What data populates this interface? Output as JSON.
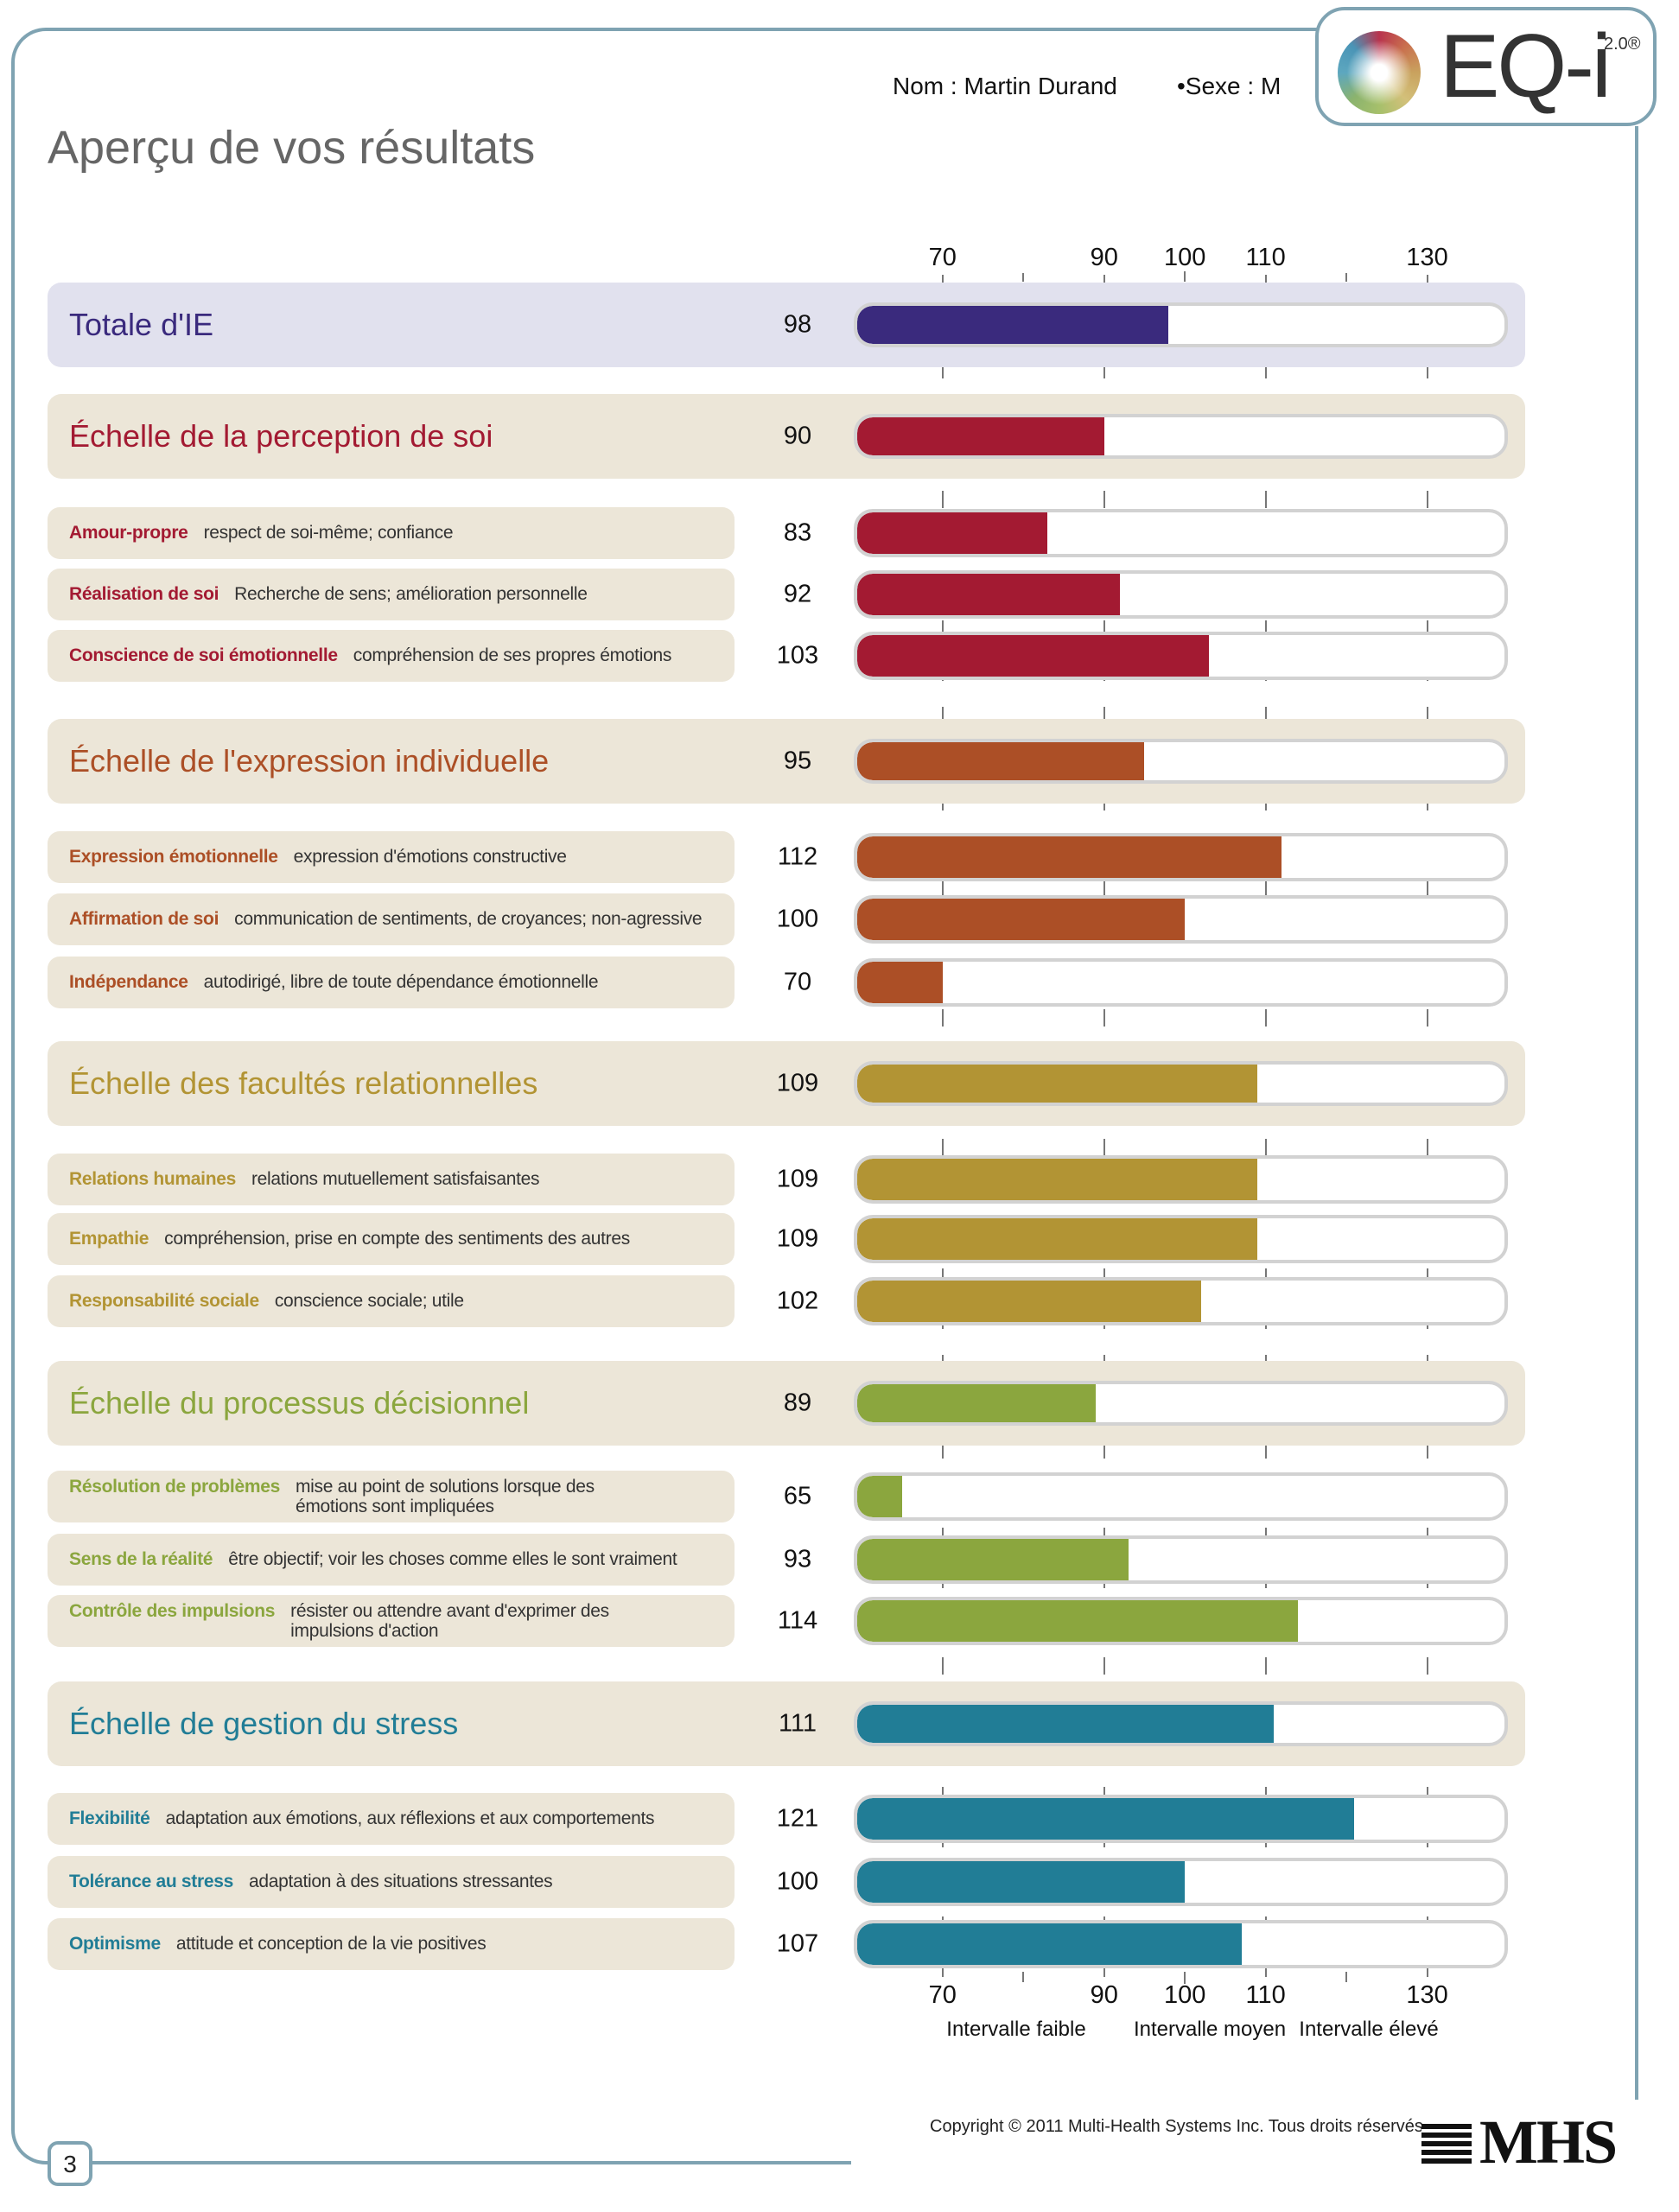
{
  "header": {
    "name": "Nom : Martin Durand",
    "sex": "•Sexe : M",
    "title": "Aperçu de vos résultats",
    "logo_text": "EQ-i",
    "logo_sup": "2.0®"
  },
  "colors": {
    "frame": "#7fa3b2",
    "total_band": "#e1e1ee",
    "band": "#ece6d8",
    "total": "#3a2a7d",
    "perception": "#a31a32",
    "expression": "#ac4f26",
    "relationnelles": "#b29434",
    "decision": "#8ba63e",
    "stress": "#217d96"
  },
  "chart_data": {
    "type": "bar",
    "orientation": "horizontal",
    "xlim": [
      59,
      140
    ],
    "ticks": [
      70,
      90,
      100,
      110,
      130
    ],
    "minor_ticks": [
      80,
      120
    ],
    "range_labels": [
      "Intervalle faible",
      "Intervalle moyen",
      "Intervalle élevé"
    ],
    "grid": false,
    "rows": [
      {
        "level": "total",
        "label": "Totale d'IE",
        "desc": "",
        "value": 98,
        "color": "#3a2a7d"
      },
      {
        "level": "composite",
        "label": "Échelle de la perception de soi",
        "desc": "",
        "value": 90,
        "color": "#a31a32"
      },
      {
        "level": "subscale",
        "label": "Amour-propre",
        "desc": "respect de soi-même; confiance",
        "value": 83,
        "color": "#a31a32"
      },
      {
        "level": "subscale",
        "label": "Réalisation de soi",
        "desc": "Recherche de sens; amélioration personnelle",
        "value": 92,
        "color": "#a31a32"
      },
      {
        "level": "subscale",
        "label": "Conscience de soi émotionnelle",
        "desc": "compréhension de ses propres émotions",
        "value": 103,
        "color": "#a31a32"
      },
      {
        "level": "composite",
        "label": "Échelle de l'expression individuelle",
        "desc": "",
        "value": 95,
        "color": "#ac4f26"
      },
      {
        "level": "subscale",
        "label": "Expression émotionnelle",
        "desc": "expression d'émotions constructive",
        "value": 112,
        "color": "#ac4f26"
      },
      {
        "level": "subscale",
        "label": "Affirmation de soi",
        "desc": "communication de sentiments, de croyances; non-agressive",
        "value": 100,
        "color": "#ac4f26"
      },
      {
        "level": "subscale",
        "label": "Indépendance",
        "desc": "autodirigé, libre de toute dépendance émotionnelle",
        "value": 70,
        "color": "#ac4f26"
      },
      {
        "level": "composite",
        "label": "Échelle des facultés relationnelles",
        "desc": "",
        "value": 109,
        "color": "#b29434"
      },
      {
        "level": "subscale",
        "label": "Relations humaines",
        "desc": "relations mutuellement satisfaisantes",
        "value": 109,
        "color": "#b29434"
      },
      {
        "level": "subscale",
        "label": "Empathie",
        "desc": "compréhension, prise en compte des sentiments des autres",
        "value": 109,
        "color": "#b29434"
      },
      {
        "level": "subscale",
        "label": "Responsabilité sociale",
        "desc": "conscience sociale; utile",
        "value": 102,
        "color": "#b29434"
      },
      {
        "level": "composite",
        "label": "Échelle du processus décisionnel",
        "desc": "",
        "value": 89,
        "color": "#8ba63e"
      },
      {
        "level": "subscale",
        "label": "Résolution de problèmes",
        "desc": "mise au point de solutions lorsque des\némotions sont impliquées",
        "value": 65,
        "color": "#8ba63e"
      },
      {
        "level": "subscale",
        "label": "Sens de la réalité",
        "desc": "être objectif; voir les choses comme elles le sont vraiment",
        "value": 93,
        "color": "#8ba63e"
      },
      {
        "level": "subscale",
        "label": "Contrôle des impulsions",
        "desc": "résister ou attendre avant d'exprimer des\nimpulsions d'action",
        "value": 114,
        "color": "#8ba63e"
      },
      {
        "level": "composite",
        "label": "Échelle de gestion du stress",
        "desc": "",
        "value": 111,
        "color": "#217d96"
      },
      {
        "level": "subscale",
        "label": "Flexibilité",
        "desc": "adaptation aux émotions, aux réflexions et aux comportements",
        "value": 121,
        "color": "#217d96"
      },
      {
        "level": "subscale",
        "label": "Tolérance au stress",
        "desc": "adaptation à des situations stressantes",
        "value": 100,
        "color": "#217d96"
      },
      {
        "level": "subscale",
        "label": "Optimisme",
        "desc": "attitude et conception de la vie positives",
        "value": 107,
        "color": "#217d96"
      }
    ]
  },
  "footer": {
    "copyright": "Copyright © 2011 Multi-Health Systems Inc. Tous droits réservés.",
    "publisher_logo": "MHS",
    "page_number": "3"
  }
}
